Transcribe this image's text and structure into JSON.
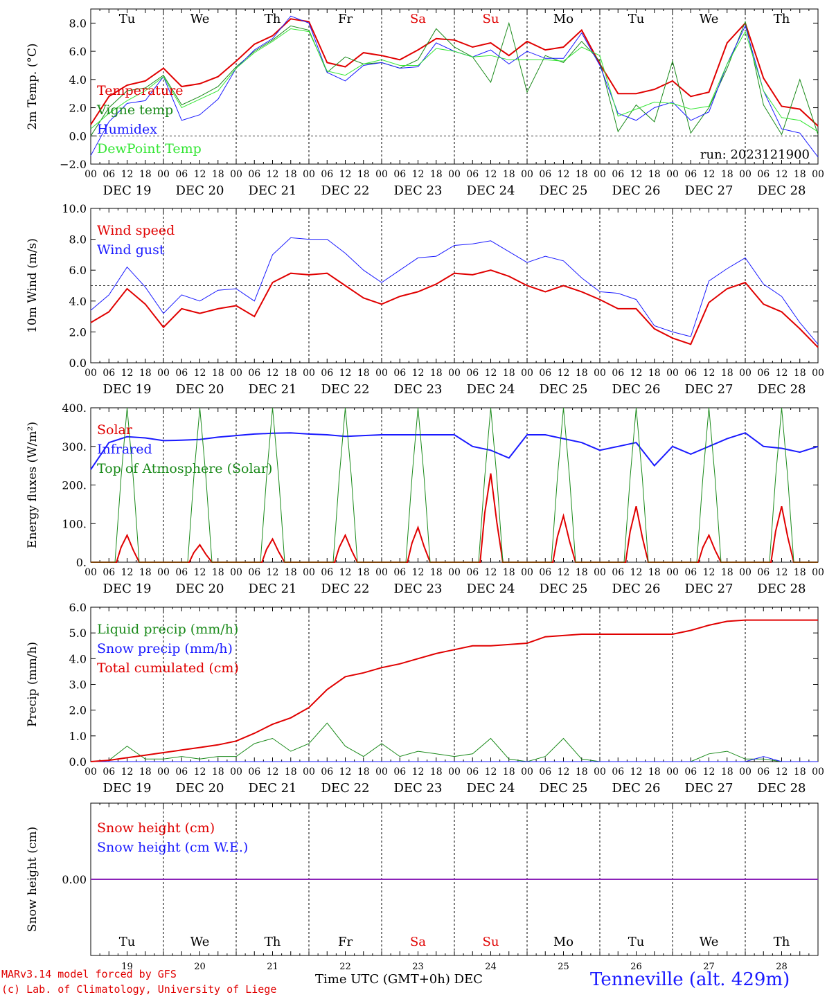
{
  "days": [
    "DEC 19",
    "DEC 20",
    "DEC 21",
    "DEC 22",
    "DEC 23",
    "DEC 24",
    "DEC 25",
    "DEC 26",
    "DEC 27",
    "DEC 28"
  ],
  "weekdays": [
    "Tu",
    "We",
    "Th",
    "Fr",
    "Sa",
    "Su",
    "Mo",
    "Tu",
    "We",
    "Th"
  ],
  "day_numbers": [
    "19",
    "20",
    "21",
    "22",
    "23",
    "24",
    "25",
    "26",
    "27",
    "28"
  ],
  "hour_ticks": [
    "00",
    "06",
    "12",
    "18"
  ],
  "colors": {
    "red": "#e00000",
    "green": "#1a8a1a",
    "blue": "#1a1aff",
    "lightgreen": "#33e633",
    "purple": "#8b22b8",
    "weekend": "#e00000"
  },
  "footer": {
    "model": "MARv3.14 model forced by GFS",
    "lab": "(c) Lab. of Climatology, University of Liege",
    "time_axis": "Time UTC (GMT+0h) DEC",
    "station": "Tenneville (alt. 429m)"
  },
  "chart_data": [
    {
      "type": "line",
      "ylabel": "2m Temp. (°C)",
      "ylim": [
        -2,
        9
      ],
      "yticks": [
        -2,
        0,
        2,
        4,
        6,
        8
      ],
      "ytick_labels": [
        "−2.0",
        "0.0",
        "2.0",
        "4.0",
        "6.0",
        "8.0"
      ],
      "annotation": "run: 2023121900",
      "ref_line": 0,
      "x": [
        0,
        6,
        12,
        18,
        24,
        30,
        36,
        42,
        48,
        54,
        60,
        66,
        72,
        78,
        84,
        90,
        96,
        102,
        108,
        114,
        120,
        126,
        132,
        138,
        144,
        150,
        156,
        162,
        168,
        174,
        180,
        186,
        192,
        198,
        204,
        210,
        216,
        222,
        228,
        234,
        240
      ],
      "series": [
        {
          "name": "Temperature",
          "color": "red",
          "width": 2,
          "values": [
            0.8,
            2.8,
            3.6,
            3.9,
            4.8,
            3.5,
            3.7,
            4.2,
            5.3,
            6.5,
            7.1,
            8.3,
            8.1,
            5.2,
            4.9,
            5.9,
            5.7,
            5.4,
            6.1,
            6.9,
            6.8,
            6.3,
            6.6,
            5.7,
            6.7,
            6.1,
            6.3,
            7.5,
            5.1,
            3.0,
            3.0,
            3.3,
            3.9,
            2.8,
            3.1,
            6.6,
            8.0,
            4.1,
            2.1,
            1.9,
            0.7
          ]
        },
        {
          "name": "Vigne temp",
          "color": "green",
          "width": 1,
          "values": [
            0.0,
            2.0,
            3.2,
            3.4,
            4.3,
            2.2,
            2.8,
            3.5,
            4.9,
            6.0,
            6.8,
            7.8,
            7.5,
            4.5,
            5.6,
            5.1,
            5.2,
            4.8,
            5.4,
            7.6,
            6.3,
            5.6,
            3.8,
            8.0,
            3.1,
            5.7,
            5.2,
            6.7,
            5.3,
            0.3,
            2.2,
            1.0,
            5.3,
            0.2,
            2.0,
            4.8,
            8.1,
            2.2,
            0.1,
            4.0,
            0.1
          ]
        },
        {
          "name": "Humidex",
          "color": "blue",
          "width": 1,
          "values": [
            -1.4,
            1.0,
            2.3,
            2.5,
            4.2,
            1.1,
            1.5,
            2.6,
            4.8,
            6.1,
            6.9,
            8.5,
            8.0,
            4.5,
            3.9,
            5.0,
            5.2,
            4.8,
            4.9,
            6.6,
            6.0,
            5.6,
            6.1,
            5.1,
            6.0,
            5.5,
            5.5,
            7.3,
            5.0,
            1.6,
            1.1,
            2.0,
            2.4,
            1.1,
            1.7,
            5.1,
            7.8,
            3.2,
            0.5,
            0.2,
            -1.5
          ]
        },
        {
          "name": "DewPoint Temp",
          "color": "lightgreen",
          "width": 1,
          "values": [
            0.5,
            1.6,
            2.5,
            3.2,
            4.2,
            2.0,
            2.6,
            3.2,
            4.8,
            5.9,
            6.7,
            7.6,
            7.4,
            4.6,
            4.3,
            5.1,
            5.4,
            5.0,
            5.0,
            6.2,
            6.0,
            5.6,
            5.7,
            5.4,
            5.4,
            5.4,
            5.3,
            6.3,
            5.7,
            1.4,
            1.9,
            2.4,
            2.3,
            1.9,
            2.1,
            5.1,
            7.4,
            3.2,
            1.3,
            1.1,
            0.3
          ]
        }
      ]
    },
    {
      "type": "line",
      "ylabel": "10m Wind (m/s)",
      "ylim": [
        0,
        10
      ],
      "yticks": [
        0,
        2,
        4,
        6,
        8,
        10
      ],
      "ytick_labels": [
        "0.0",
        "2.0",
        "4.0",
        "6.0",
        "8.0",
        "10.0"
      ],
      "ref_line": 5,
      "x": [
        0,
        6,
        12,
        18,
        24,
        30,
        36,
        42,
        48,
        54,
        60,
        66,
        72,
        78,
        84,
        90,
        96,
        102,
        108,
        114,
        120,
        126,
        132,
        138,
        144,
        150,
        156,
        162,
        168,
        174,
        180,
        186,
        192,
        198,
        204,
        210,
        216,
        222,
        228,
        234,
        240
      ],
      "series": [
        {
          "name": "Wind speed",
          "color": "red",
          "width": 2,
          "values": [
            2.6,
            3.3,
            4.8,
            3.8,
            2.3,
            3.5,
            3.2,
            3.5,
            3.7,
            3.0,
            5.2,
            5.8,
            5.7,
            5.8,
            5.0,
            4.2,
            3.8,
            4.3,
            4.6,
            5.1,
            5.8,
            5.7,
            6.0,
            5.6,
            5.0,
            4.6,
            5.0,
            4.6,
            4.1,
            3.5,
            3.5,
            2.2,
            1.6,
            1.2,
            3.9,
            4.8,
            5.2,
            3.8,
            3.3,
            2.2,
            1.0
          ]
        },
        {
          "name": "Wind gust",
          "color": "blue",
          "width": 1,
          "values": [
            3.4,
            4.4,
            6.2,
            4.9,
            3.2,
            4.4,
            4.0,
            4.7,
            4.8,
            4.0,
            7.0,
            8.1,
            8.0,
            8.0,
            7.1,
            6.0,
            5.2,
            6.0,
            6.8,
            6.9,
            7.6,
            7.7,
            7.9,
            7.2,
            6.5,
            6.9,
            6.6,
            5.5,
            4.6,
            4.5,
            4.1,
            2.4,
            2.0,
            1.7,
            5.3,
            6.1,
            6.8,
            5.1,
            4.3,
            2.6,
            1.2
          ]
        }
      ]
    },
    {
      "type": "line",
      "ylabel": "Energy fluxes (W/m²)",
      "ylim": [
        0,
        400
      ],
      "yticks": [
        0,
        100,
        200,
        300,
        400
      ],
      "ytick_labels": [
        "0.",
        "100.",
        "200.",
        "300.",
        "400."
      ],
      "series": [
        {
          "name": "Solar",
          "color": "red",
          "width": 2,
          "peaks": [
            70,
            45,
            60,
            70,
            90,
            230,
            120,
            145,
            70,
            145
          ]
        },
        {
          "name": "Infrared",
          "color": "blue",
          "width": 2,
          "x": [
            0,
            6,
            12,
            18,
            24,
            30,
            36,
            42,
            48,
            54,
            60,
            66,
            72,
            78,
            84,
            90,
            96,
            102,
            108,
            114,
            120,
            126,
            132,
            138,
            144,
            150,
            156,
            162,
            168,
            174,
            180,
            186,
            192,
            198,
            204,
            210,
            216,
            222,
            228,
            234,
            240
          ],
          "values": [
            240,
            310,
            325,
            322,
            315,
            316,
            318,
            324,
            328,
            332,
            334,
            335,
            332,
            330,
            326,
            328,
            330,
            330,
            330,
            330,
            330,
            300,
            290,
            270,
            330,
            330,
            320,
            310,
            290,
            300,
            310,
            250,
            300,
            280,
            300,
            320,
            335,
            300,
            295,
            285,
            300
          ]
        },
        {
          "name": "Top of Atmosphere (Solar)",
          "color": "green",
          "width": 1,
          "peaks": [
            400,
            400,
            400,
            400,
            400,
            400,
            400,
            400,
            400,
            400
          ]
        }
      ]
    },
    {
      "type": "line",
      "ylabel": "Precip (mm/h)",
      "ylim": [
        0,
        6
      ],
      "yticks": [
        0,
        1,
        2,
        3,
        4,
        5,
        6
      ],
      "ytick_labels": [
        "0.0",
        "1.0",
        "2.0",
        "3.0",
        "4.0",
        "5.0",
        "6.0"
      ],
      "x": [
        0,
        6,
        12,
        18,
        24,
        30,
        36,
        42,
        48,
        54,
        60,
        66,
        72,
        78,
        84,
        90,
        96,
        102,
        108,
        114,
        120,
        126,
        132,
        138,
        144,
        150,
        156,
        162,
        168,
        174,
        180,
        186,
        192,
        198,
        204,
        210,
        216,
        222,
        228,
        234,
        240
      ],
      "series": [
        {
          "name": "Liquid precip (mm/h)",
          "color": "green",
          "width": 1,
          "values": [
            0,
            0.05,
            0.6,
            0.1,
            0.1,
            0.2,
            0.1,
            0.2,
            0.2,
            0.7,
            0.9,
            0.4,
            0.7,
            1.5,
            0.6,
            0.2,
            0.7,
            0.2,
            0.4,
            0.3,
            0.2,
            0.3,
            0.9,
            0.1,
            0,
            0.2,
            0.9,
            0.1,
            0,
            0,
            0,
            0,
            0,
            0,
            0.3,
            0.4,
            0.1,
            0.1,
            0,
            0,
            0
          ]
        },
        {
          "name": "Snow precip (mm/h)",
          "color": "blue",
          "width": 1,
          "values": [
            0,
            0,
            0,
            0,
            0,
            0,
            0,
            0,
            0,
            0,
            0,
            0,
            0,
            0,
            0,
            0,
            0,
            0,
            0,
            0,
            0,
            0,
            0,
            0,
            0,
            0,
            0,
            0,
            0,
            0,
            0,
            0,
            0,
            0,
            0,
            0,
            0,
            0.2,
            0,
            0,
            0
          ]
        },
        {
          "name": "Total cumulated (cm)",
          "color": "red",
          "width": 2,
          "values": [
            0,
            0.05,
            0.15,
            0.25,
            0.35,
            0.45,
            0.55,
            0.65,
            0.8,
            1.1,
            1.45,
            1.7,
            2.1,
            2.8,
            3.3,
            3.45,
            3.65,
            3.8,
            4.0,
            4.2,
            4.35,
            4.5,
            4.5,
            4.55,
            4.6,
            4.85,
            4.9,
            4.95,
            4.95,
            4.95,
            4.95,
            4.95,
            4.95,
            5.1,
            5.3,
            5.45,
            5.5,
            5.5,
            5.5,
            5.5,
            5.5
          ]
        }
      ]
    },
    {
      "type": "line",
      "ylabel": "Snow height (cm)",
      "ylim": [
        -1,
        1
      ],
      "yticks": [
        0
      ],
      "ytick_labels": [
        "0.00"
      ],
      "x": [
        0,
        240
      ],
      "series": [
        {
          "name": "Snow height (cm)",
          "color": "red",
          "width": 2,
          "values": [
            0,
            0
          ]
        },
        {
          "name": "Snow height (cm W.E.)",
          "color": "blue",
          "width": 2,
          "values": [
            0,
            0
          ]
        }
      ]
    }
  ]
}
